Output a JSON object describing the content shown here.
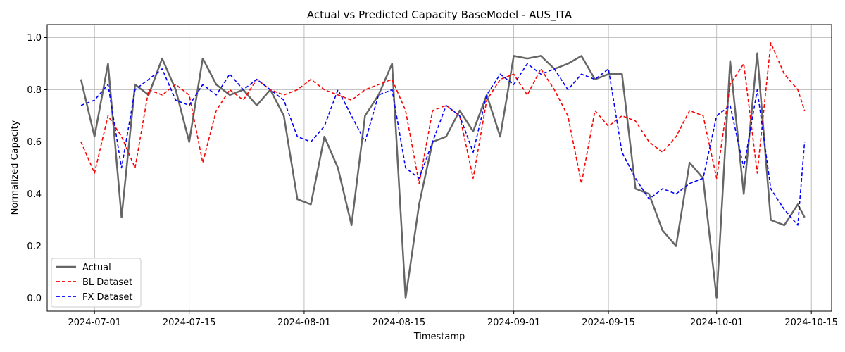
{
  "chart_data": {
    "type": "line",
    "title": "Actual vs Predicted Capacity BaseModel - AUS_ITA",
    "xlabel": "Timestamp",
    "ylabel": "Normalized Capacity",
    "xlim": [
      "2024-06-24",
      "2024-10-18"
    ],
    "ylim": [
      -0.05,
      1.05
    ],
    "grid": true,
    "legend_position": "lower-left",
    "x_ticks": [
      "2024-07-01",
      "2024-07-15",
      "2024-08-01",
      "2024-08-15",
      "2024-09-01",
      "2024-09-15",
      "2024-10-01",
      "2024-10-15"
    ],
    "y_ticks": [
      "0.0",
      "0.2",
      "0.4",
      "0.6",
      "0.8",
      "1.0"
    ],
    "x": [
      "2024-06-29",
      "2024-07-01",
      "2024-07-03",
      "2024-07-05",
      "2024-07-07",
      "2024-07-09",
      "2024-07-11",
      "2024-07-13",
      "2024-07-15",
      "2024-07-17",
      "2024-07-19",
      "2024-07-21",
      "2024-07-23",
      "2024-07-25",
      "2024-07-27",
      "2024-07-29",
      "2024-07-31",
      "2024-08-02",
      "2024-08-04",
      "2024-08-06",
      "2024-08-08",
      "2024-08-10",
      "2024-08-12",
      "2024-08-14",
      "2024-08-16",
      "2024-08-18",
      "2024-08-20",
      "2024-08-22",
      "2024-08-24",
      "2024-08-26",
      "2024-08-28",
      "2024-08-30",
      "2024-09-01",
      "2024-09-03",
      "2024-09-05",
      "2024-09-07",
      "2024-09-09",
      "2024-09-11",
      "2024-09-13",
      "2024-09-15",
      "2024-09-17",
      "2024-09-19",
      "2024-09-21",
      "2024-09-23",
      "2024-09-25",
      "2024-09-27",
      "2024-09-29",
      "2024-10-01",
      "2024-10-03",
      "2024-10-05",
      "2024-10-07",
      "2024-10-09",
      "2024-10-11",
      "2024-10-13",
      "2024-10-14"
    ],
    "series": [
      {
        "name": "Actual",
        "color": "#666666",
        "style": "solid",
        "values": [
          0.84,
          0.62,
          0.9,
          0.31,
          0.82,
          0.78,
          0.92,
          0.8,
          0.6,
          0.92,
          0.82,
          0.78,
          0.8,
          0.74,
          0.8,
          0.7,
          0.38,
          0.36,
          0.62,
          0.5,
          0.28,
          0.7,
          0.78,
          0.9,
          0.0,
          0.36,
          0.6,
          0.62,
          0.72,
          0.64,
          0.78,
          0.62,
          0.93,
          0.92,
          0.93,
          0.88,
          0.9,
          0.93,
          0.84,
          0.86,
          0.86,
          0.42,
          0.4,
          0.26,
          0.2,
          0.52,
          0.46,
          0.0,
          0.91,
          0.4,
          0.94,
          0.3,
          0.28,
          0.36,
          0.31
        ]
      },
      {
        "name": "BL Dataset",
        "color": "#ff0000",
        "style": "dashed",
        "values": [
          0.6,
          0.48,
          0.7,
          0.62,
          0.5,
          0.8,
          0.78,
          0.82,
          0.78,
          0.52,
          0.72,
          0.8,
          0.76,
          0.84,
          0.8,
          0.78,
          0.8,
          0.84,
          0.8,
          0.78,
          0.76,
          0.8,
          0.82,
          0.84,
          0.72,
          0.44,
          0.72,
          0.74,
          0.7,
          0.46,
          0.76,
          0.84,
          0.86,
          0.78,
          0.88,
          0.8,
          0.7,
          0.44,
          0.72,
          0.66,
          0.7,
          0.68,
          0.6,
          0.56,
          0.62,
          0.72,
          0.7,
          0.46,
          0.82,
          0.9,
          0.48,
          0.98,
          0.86,
          0.8,
          0.72
        ]
      },
      {
        "name": "FX Dataset",
        "color": "#0000ff",
        "style": "dashed",
        "values": [
          0.74,
          0.76,
          0.82,
          0.5,
          0.8,
          0.84,
          0.88,
          0.76,
          0.74,
          0.82,
          0.78,
          0.86,
          0.8,
          0.84,
          0.8,
          0.76,
          0.62,
          0.6,
          0.66,
          0.8,
          0.7,
          0.6,
          0.78,
          0.8,
          0.5,
          0.46,
          0.6,
          0.74,
          0.7,
          0.56,
          0.78,
          0.86,
          0.82,
          0.9,
          0.86,
          0.88,
          0.8,
          0.86,
          0.84,
          0.88,
          0.56,
          0.46,
          0.38,
          0.42,
          0.4,
          0.44,
          0.46,
          0.7,
          0.74,
          0.5,
          0.8,
          0.42,
          0.34,
          0.28,
          0.6
        ]
      }
    ]
  }
}
